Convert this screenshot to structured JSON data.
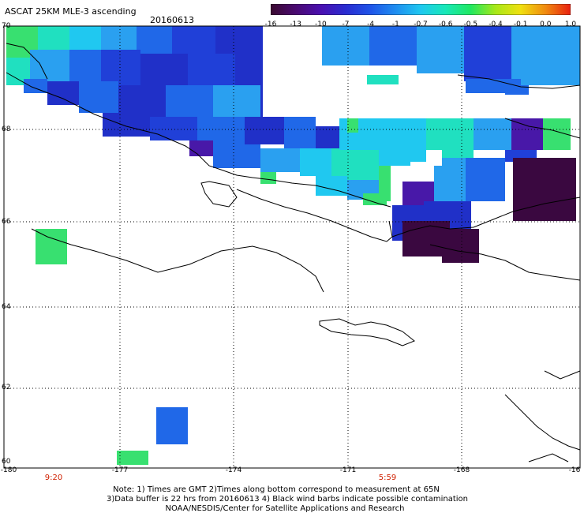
{
  "header": {
    "title": "ASCAT 25KM MLE-3 ascending",
    "date": "20160613"
  },
  "colorbar": {
    "labels": [
      "-16",
      "-13",
      "-10",
      "-7",
      "-4",
      "-1",
      "-0.7",
      "-0.6",
      "-0.5",
      "-0.4",
      "-0.1",
      "0.0",
      "1.0"
    ],
    "colors": [
      "#3a0a30",
      "#4a0a70",
      "#4a10b0",
      "#2a2cd0",
      "#1f55e8",
      "#1f8ef0",
      "#1fc8f0",
      "#18e8b8",
      "#20e860",
      "#a8e818",
      "#f0e010",
      "#f08a10",
      "#e82010"
    ]
  },
  "axes": {
    "lat_labels": [
      "70",
      "68",
      "66",
      "64",
      "62",
      "60"
    ],
    "lon_labels": [
      "-180",
      "-177",
      "-174",
      "-171",
      "-168",
      "-16"
    ]
  },
  "times": {
    "left": "9:20",
    "right": "5:59"
  },
  "notes": {
    "line1": "Note: 1) Times are GMT 2)Times along bottom correspond to measurement at 65N",
    "line2": "3)Data buffer is 22 hrs from 20160613 4) Black wind barbs indicate possible contamination",
    "line3": "NOAA/NESDIS/Center for Satellite Applications and Research"
  }
}
